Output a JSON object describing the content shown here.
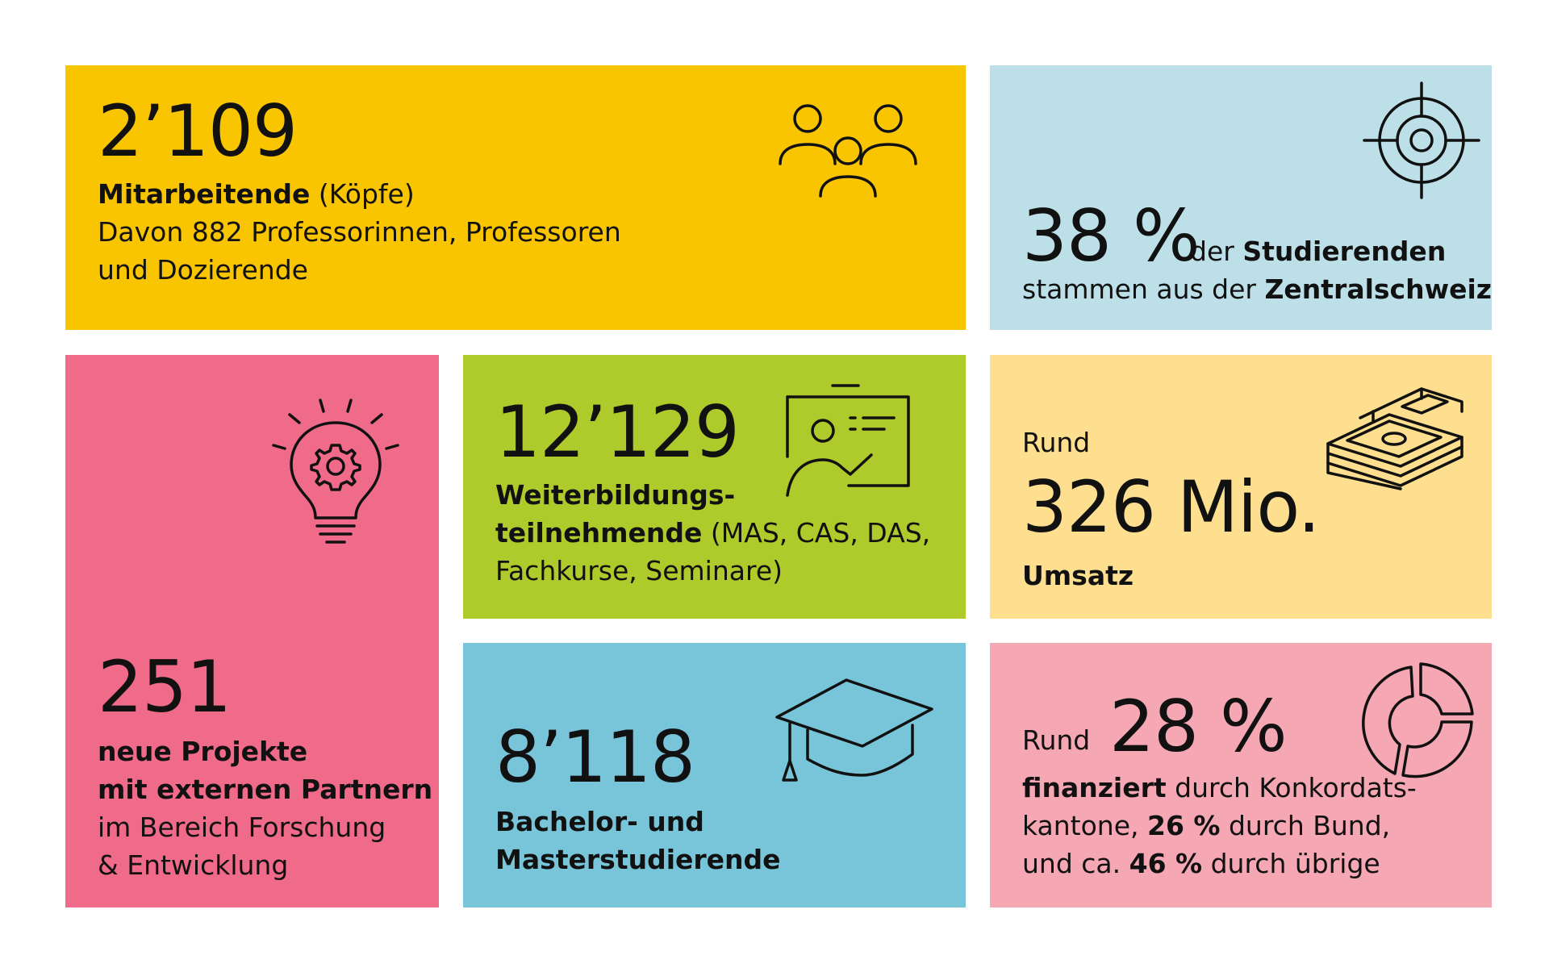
{
  "tiles": {
    "staff": {
      "number": "2’109",
      "line1_bold": "Mitarbeitende",
      "line1_rest": " (Köpfe)",
      "line2": "Davon 882 Professorinnen, Professoren",
      "line3": "und Dozierende",
      "icon": "people-group-icon",
      "color": "#f9c400"
    },
    "origin": {
      "number": "38 %",
      "after_pre": "der ",
      "after_bold": "Studierenden",
      "line2_pre": "stammen aus der ",
      "line2_bold": "Zentralschweiz",
      "icon": "target-icon",
      "color": "#bde0e8"
    },
    "projects": {
      "number": "251",
      "line1_bold": "neue Projekte",
      "line2_bold": "mit externen Partnern",
      "line3": "im Bereich Forschung",
      "line4": "& Entwicklung",
      "icon": "lightbulb-gear-icon",
      "color": "#ef6b89"
    },
    "training": {
      "number": "12’129",
      "line1_bold": "Weiterbildungs-",
      "line2_bold": "teilnehmende",
      "line2_rest": " (MAS, CAS, DAS,",
      "line3": "Fachkurse, Seminare)",
      "icon": "presentation-board-icon",
      "color": "#aecb2b"
    },
    "revenue": {
      "prefix": "Rund",
      "number": "326 Mio.",
      "label_bold": "Umsatz",
      "icon": "money-stack-icon",
      "color": "#fddf8f"
    },
    "students": {
      "number": "8’118",
      "line1_bold": "Bachelor- und",
      "line2_bold": "Masterstudierende",
      "icon": "graduation-cap-icon",
      "color": "#78c5d9"
    },
    "funding": {
      "prefix": "Rund",
      "number": "28 %",
      "line1_bold": "finanziert",
      "line1_rest": " durch Konkordats-",
      "line2_pre": "kantone, ",
      "line2_bold": "26 %",
      "line2_rest": " durch Bund,",
      "line3_pre": "und ca. ",
      "line3_bold": "46 %",
      "line3_rest": " durch übrige",
      "icon": "donut-chart-icon",
      "color": "#f5a8b3"
    }
  }
}
